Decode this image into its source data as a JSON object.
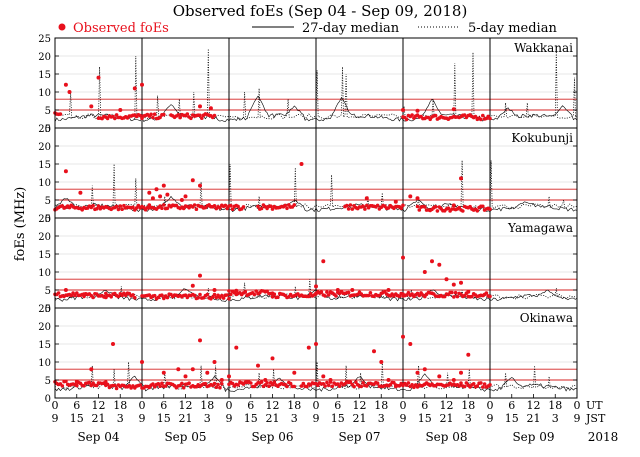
{
  "chart_data": {
    "type": "scatter",
    "title": "Observed foEs (Sep 04 - Sep 09, 2018)",
    "ylabel": "foEs (MHz)",
    "year_label": "2018",
    "legend": {
      "observed": "Observed foEs",
      "median27": "27-day median",
      "median5": "5-day median"
    },
    "hours_per_panel": 144,
    "ylim": [
      0,
      25
    ],
    "yticks": [
      0,
      5,
      10,
      15,
      20,
      25
    ],
    "ut_label": "UT",
    "jst_label": "JST",
    "ut_ticks": [
      "0",
      "6",
      "12",
      "18",
      "0",
      "6",
      "12",
      "18",
      "0",
      "6",
      "12",
      "18",
      "0",
      "6",
      "12",
      "18",
      "0",
      "6",
      "12",
      "18",
      "0",
      "6",
      "12",
      "18",
      "0"
    ],
    "jst_ticks": [
      "9",
      "15",
      "21",
      "3",
      "9",
      "15",
      "21",
      "3",
      "9",
      "15",
      "21",
      "3",
      "9",
      "15",
      "21",
      "3",
      "9",
      "15",
      "21",
      "3",
      "9",
      "15",
      "21",
      "3",
      "9"
    ],
    "day_labels": [
      "Sep 04",
      "Sep 05",
      "Sep 06",
      "Sep 07",
      "Sep 08",
      "Sep 09"
    ],
    "colors": {
      "observed": "#e8101c",
      "threshold": "#d42020",
      "median": "#000000"
    },
    "threshold_lines": [
      5,
      8
    ],
    "panels": [
      {
        "station": "Wakkanai",
        "obs_segments": [
          [
            0,
            1.5,
            4.0
          ],
          [
            12,
            30,
            3.2
          ],
          [
            32,
            44,
            3.3
          ],
          [
            96,
            120,
            3.0
          ]
        ],
        "observed": [
          [
            3,
            12
          ],
          [
            4,
            10
          ],
          [
            12,
            14
          ],
          [
            22,
            11
          ],
          [
            24,
            12
          ],
          [
            10,
            6
          ],
          [
            18,
            5
          ],
          [
            40,
            6
          ],
          [
            43,
            5.5
          ],
          [
            96,
            5
          ],
          [
            100,
            4.8
          ],
          [
            110,
            5.2
          ]
        ],
        "median5_spikes": [
          [
            4,
            10
          ],
          [
            12,
            17
          ],
          [
            22,
            20
          ],
          [
            28,
            9
          ],
          [
            34,
            8
          ],
          [
            38,
            10
          ],
          [
            42,
            22
          ],
          [
            52,
            10
          ],
          [
            56,
            11
          ],
          [
            64,
            8
          ],
          [
            72,
            16
          ],
          [
            79,
            17
          ],
          [
            80,
            15
          ],
          [
            96,
            6
          ],
          [
            104,
            8
          ],
          [
            110,
            18
          ],
          [
            115,
            21
          ],
          [
            124,
            7
          ],
          [
            130,
            7
          ],
          [
            138,
            22
          ],
          [
            143,
            14
          ]
        ],
        "median27_peaks": [
          [
            32,
            6.5
          ],
          [
            56,
            9
          ],
          [
            66,
            6
          ],
          [
            79,
            8.5
          ],
          [
            104,
            8
          ],
          [
            125,
            5.5
          ],
          [
            140,
            6
          ]
        ]
      },
      {
        "station": "Kokubunji",
        "obs_segments": [
          [
            0,
            26,
            2.9
          ],
          [
            26,
            52,
            3.0
          ],
          [
            56,
            66,
            3.1
          ],
          [
            80,
            96,
            3.0
          ],
          [
            100,
            120,
            2.6
          ]
        ],
        "observed": [
          [
            3,
            13
          ],
          [
            7,
            7
          ],
          [
            26,
            7
          ],
          [
            28,
            8
          ],
          [
            30,
            9
          ],
          [
            27,
            5.5
          ],
          [
            29,
            6
          ],
          [
            31,
            6.5
          ],
          [
            36,
            6
          ],
          [
            38,
            10.5
          ],
          [
            40,
            9
          ],
          [
            35,
            5
          ],
          [
            68,
            15
          ],
          [
            86,
            5.5
          ],
          [
            94,
            4.5
          ],
          [
            98,
            6
          ],
          [
            100,
            5.5
          ],
          [
            112,
            11
          ],
          [
            110,
            3.5
          ]
        ],
        "median5_spikes": [
          [
            10,
            9
          ],
          [
            16,
            15
          ],
          [
            22,
            11
          ],
          [
            30,
            6
          ],
          [
            40,
            10
          ],
          [
            48,
            15
          ],
          [
            56,
            6
          ],
          [
            66,
            14
          ],
          [
            76,
            12
          ],
          [
            86,
            6
          ],
          [
            90,
            7
          ],
          [
            100,
            5
          ],
          [
            112,
            16
          ],
          [
            120,
            16
          ],
          [
            136,
            6
          ],
          [
            140,
            5
          ]
        ],
        "median27_peaks": [
          [
            3,
            5.5
          ],
          [
            32,
            6
          ],
          [
            66,
            5
          ],
          [
            100,
            5
          ],
          [
            130,
            4.5
          ]
        ]
      },
      {
        "station": "Yamagawa",
        "obs_segments": [
          [
            0,
            8,
            3.8
          ],
          [
            8,
            22,
            3.5
          ],
          [
            24,
            48,
            3.2
          ],
          [
            48,
            60,
            4.2
          ],
          [
            60,
            72,
            3.5
          ],
          [
            72,
            96,
            3.9
          ],
          [
            96,
            120,
            3.7
          ]
        ],
        "observed": [
          [
            3,
            5
          ],
          [
            14,
            3
          ],
          [
            40,
            9
          ],
          [
            38,
            6.2
          ],
          [
            44,
            5
          ],
          [
            50,
            4.8
          ],
          [
            72,
            6
          ],
          [
            78,
            5
          ],
          [
            74,
            13
          ],
          [
            82,
            5
          ],
          [
            96,
            14
          ],
          [
            104,
            13
          ],
          [
            106,
            12
          ],
          [
            102,
            10
          ],
          [
            108,
            8
          ],
          [
            110,
            6.5
          ],
          [
            112,
            7
          ],
          [
            114,
            4.5
          ],
          [
            92,
            5
          ]
        ],
        "median5_spikes": [
          [
            18,
            6
          ],
          [
            42,
            5.5
          ],
          [
            52,
            7
          ],
          [
            66,
            6
          ],
          [
            70,
            8
          ],
          [
            78,
            5
          ],
          [
            90,
            5
          ],
          [
            98,
            5
          ],
          [
            112,
            5
          ],
          [
            138,
            5.5
          ]
        ],
        "median27_peaks": [
          [
            14,
            5
          ],
          [
            36,
            5.5
          ],
          [
            72,
            5.2
          ],
          [
            104,
            5.2
          ],
          [
            136,
            5
          ]
        ]
      },
      {
        "station": "Okinawa",
        "obs_segments": [
          [
            0,
            14,
            4.0
          ],
          [
            14,
            26,
            3.2
          ],
          [
            26,
            46,
            3.5
          ],
          [
            48,
            66,
            3.8
          ],
          [
            68,
            94,
            3.8
          ],
          [
            94,
            120,
            3.6
          ]
        ],
        "observed": [
          [
            6,
            4.5
          ],
          [
            10,
            8
          ],
          [
            16,
            15
          ],
          [
            24,
            10
          ],
          [
            30,
            7
          ],
          [
            34,
            8
          ],
          [
            36,
            6
          ],
          [
            38,
            8
          ],
          [
            40,
            16
          ],
          [
            42,
            7
          ],
          [
            44,
            10
          ],
          [
            46,
            5
          ],
          [
            48,
            6
          ],
          [
            50,
            14
          ],
          [
            56,
            9
          ],
          [
            58,
            5
          ],
          [
            60,
            11
          ],
          [
            66,
            7
          ],
          [
            70,
            14
          ],
          [
            72,
            15
          ],
          [
            74,
            6
          ],
          [
            76,
            5
          ],
          [
            90,
            10
          ],
          [
            92,
            5
          ],
          [
            96,
            17
          ],
          [
            98,
            15
          ],
          [
            100,
            7
          ],
          [
            102,
            8
          ],
          [
            106,
            6
          ],
          [
            110,
            5
          ],
          [
            112,
            7
          ],
          [
            114,
            12
          ],
          [
            88,
            13
          ]
        ],
        "median5_spikes": [
          [
            10,
            9
          ],
          [
            16,
            8
          ],
          [
            20,
            10
          ],
          [
            30,
            7
          ],
          [
            40,
            9
          ],
          [
            44,
            9
          ],
          [
            56,
            7
          ],
          [
            60,
            8
          ],
          [
            72,
            10
          ],
          [
            80,
            9
          ],
          [
            84,
            7
          ],
          [
            90,
            10
          ],
          [
            100,
            9
          ],
          [
            108,
            7
          ],
          [
            114,
            8
          ],
          [
            124,
            7
          ],
          [
            132,
            9
          ],
          [
            136,
            6
          ]
        ],
        "median27_peaks": [
          [
            22,
            6
          ],
          [
            44,
            6
          ],
          [
            62,
            5.5
          ],
          [
            84,
            6
          ],
          [
            102,
            6.5
          ],
          [
            126,
            5.5
          ]
        ]
      }
    ]
  }
}
